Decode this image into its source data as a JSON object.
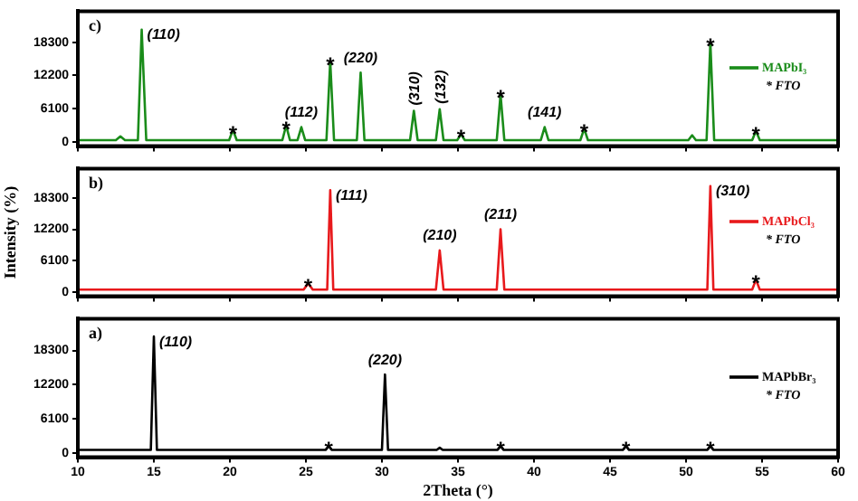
{
  "chart_data": [
    {
      "type": "line",
      "title": "c)",
      "xlim": [
        10,
        60
      ],
      "xticks": [
        10,
        15,
        20,
        25,
        30,
        35,
        40,
        45,
        50,
        55,
        60
      ],
      "ylim": [
        -800,
        24000
      ],
      "yticks": [
        0,
        6100,
        12200,
        18300
      ],
      "grid": false,
      "legend": "right",
      "tick_labels": "y",
      "series": [
        {
          "name": "MAPbI₃",
          "color": "#1a8c1a",
          "x": [
            10,
            12.5,
            12.8,
            13.1,
            13.95,
            14.2,
            14.5,
            19.95,
            20.2,
            20.45,
            23.45,
            23.7,
            23.95,
            24.45,
            24.7,
            24.95,
            26.35,
            26.6,
            26.85,
            28.35,
            28.6,
            28.85,
            31.85,
            32.1,
            32.35,
            33.55,
            33.8,
            34.05,
            34.95,
            35.2,
            35.45,
            37.55,
            37.8,
            38.05,
            40.45,
            40.7,
            40.95,
            43.05,
            43.3,
            43.55,
            50.15,
            50.4,
            50.65,
            51.35,
            51.6,
            51.85,
            54.35,
            54.6,
            54.85,
            60
          ],
          "values": [
            300,
            300,
            1000,
            300,
            300,
            20600,
            300,
            300,
            2200,
            300,
            300,
            3000,
            300,
            300,
            2700,
            300,
            300,
            14800,
            300,
            300,
            12700,
            300,
            300,
            5700,
            300,
            300,
            6000,
            300,
            300,
            1400,
            300,
            300,
            8700,
            300,
            300,
            2700,
            300,
            300,
            2400,
            300,
            300,
            1200,
            300,
            300,
            18300,
            300,
            300,
            2000,
            300,
            300
          ]
        }
      ],
      "annotations": [
        "* FTO",
        {
          "text": "(110)",
          "x": 14.2,
          "y": 20600
        },
        {
          "text": "*",
          "x": 20.2,
          "y": 2200
        },
        {
          "text": "*",
          "x": 23.7,
          "y": 3000
        },
        {
          "text": "(112)",
          "x": 24.7,
          "y": 2700
        },
        {
          "text": "*",
          "x": 26.6,
          "y": 14800
        },
        {
          "text": "(220)",
          "x": 28.6,
          "y": 12700
        },
        {
          "text": "(310)",
          "x": 32.1,
          "y": 5700
        },
        {
          "text": "(132)",
          "x": 33.8,
          "y": 6000
        },
        {
          "text": "*",
          "x": 35.2,
          "y": 1400
        },
        {
          "text": "*",
          "x": 37.8,
          "y": 8700
        },
        {
          "text": "(141)",
          "x": 40.7,
          "y": 2700
        },
        {
          "text": "*",
          "x": 43.3,
          "y": 2400
        },
        {
          "text": "*",
          "x": 51.6,
          "y": 18300
        },
        {
          "text": "*",
          "x": 54.6,
          "y": 2000
        }
      ]
    },
    {
      "type": "line",
      "title": "b)",
      "ylabel": "Intensity (%)",
      "xlim": [
        10,
        60
      ],
      "xticks": [
        10,
        15,
        20,
        25,
        30,
        35,
        40,
        45,
        50,
        55,
        60
      ],
      "ylim": [
        -800,
        24000
      ],
      "yticks": [
        0,
        6100,
        12200,
        18300
      ],
      "grid": false,
      "legend": "right",
      "tick_labels": "y",
      "series": [
        {
          "name": "MAPbCl₃",
          "color": "#e8191c",
          "x": [
            10,
            24.85,
            25.15,
            25.45,
            26.4,
            26.6,
            26.8,
            33.55,
            33.8,
            34.05,
            37.55,
            37.8,
            38.05,
            51.4,
            51.6,
            51.8,
            54.35,
            54.6,
            54.85,
            60
          ],
          "values": [
            500,
            500,
            1700,
            500,
            500,
            19800,
            500,
            500,
            8100,
            500,
            500,
            12200,
            500,
            500,
            20600,
            500,
            500,
            2400,
            500,
            500
          ]
        }
      ],
      "annotations": [
        "* FTO",
        {
          "text": "*",
          "x": 25.15,
          "y": 1700
        },
        {
          "text": "(111)",
          "x": 26.6,
          "y": 19800
        },
        {
          "text": "(210)",
          "x": 33.8,
          "y": 8100
        },
        {
          "text": "(211)",
          "x": 37.8,
          "y": 12200
        },
        {
          "text": "(310)",
          "x": 51.6,
          "y": 20600
        },
        {
          "text": "*",
          "x": 54.6,
          "y": 2400
        }
      ]
    },
    {
      "type": "line",
      "title": "a)",
      "xlabel": "2Theta (°)",
      "xlim": [
        10,
        60
      ],
      "xticks": [
        10,
        15,
        20,
        25,
        30,
        35,
        40,
        45,
        50,
        55,
        60
      ],
      "ylim": [
        -800,
        24000
      ],
      "yticks": [
        0,
        6100,
        12200,
        18300
      ],
      "grid": false,
      "legend": "right",
      "series": [
        {
          "name": "MAPbBr₃",
          "color": "#000000",
          "x": [
            10,
            14.8,
            15,
            15.2,
            26.3,
            26.5,
            26.7,
            30,
            30.2,
            30.4,
            33.6,
            33.8,
            34,
            37.6,
            37.8,
            38,
            45.85,
            46.05,
            46.25,
            51.4,
            51.6,
            51.8,
            60
          ],
          "values": [
            500,
            500,
            20800,
            500,
            500,
            1200,
            500,
            500,
            14000,
            500,
            500,
            900,
            500,
            500,
            1200,
            500,
            500,
            1200,
            500,
            500,
            1200,
            500,
            500
          ]
        }
      ],
      "annotations": [
        "* FTO",
        {
          "text": "(110)",
          "x": 15,
          "y": 20800
        },
        {
          "text": "*",
          "x": 26.5,
          "y": 1200
        },
        {
          "text": "(220)",
          "x": 30.2,
          "y": 14000
        },
        {
          "text": "*",
          "x": 37.8,
          "y": 1200
        },
        {
          "text": "*",
          "x": 46.05,
          "y": 1200
        },
        {
          "text": "*",
          "x": 51.6,
          "y": 1200
        }
      ]
    }
  ]
}
